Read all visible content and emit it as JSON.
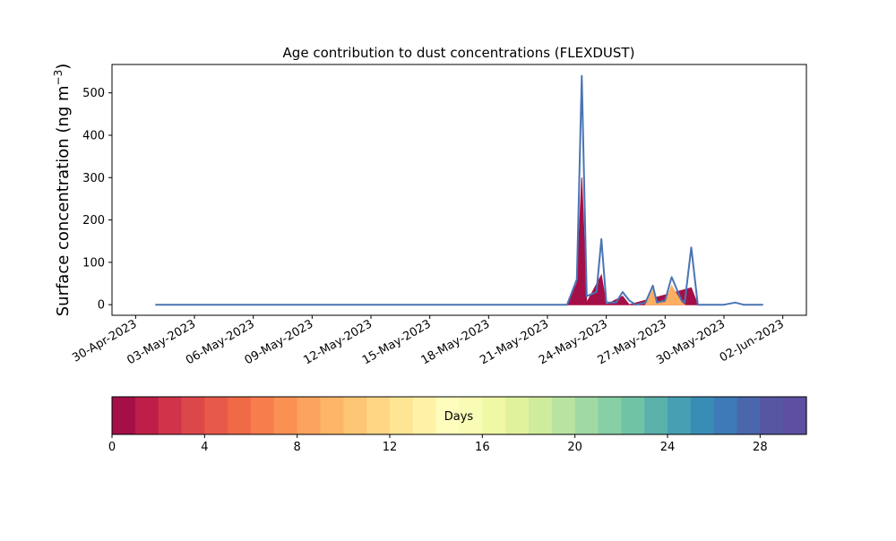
{
  "chart_data": {
    "type": "area",
    "title": "Age contribution to dust concentrations (FLEXDUST)",
    "ylabel": "Surface concentration (ng m",
    "ylabel_unit_exponent": "−3",
    "ylabel_close": ")",
    "xlabel": "",
    "x_range": [
      "2023-04-30",
      "2023-06-02"
    ],
    "ylim": [
      -25,
      567
    ],
    "x_ticks": [
      "30-Apr-2023",
      "03-May-2023",
      "06-May-2023",
      "09-May-2023",
      "12-May-2023",
      "15-May-2023",
      "18-May-2023",
      "21-May-2023",
      "24-May-2023",
      "27-May-2023",
      "30-May-2023",
      "02-Jun-2023"
    ],
    "y_ticks": [
      0,
      100,
      200,
      300,
      400,
      500
    ],
    "grid": false,
    "stacked": true,
    "total_series": {
      "name": "total",
      "color": "#4a74b5",
      "points": [
        [
          "2023-05-01",
          0
        ],
        [
          "2023-05-22",
          0
        ],
        [
          "2023-05-22 12:00",
          60
        ],
        [
          "2023-05-22 18:00",
          540
        ],
        [
          "2023-05-23 00:00",
          20
        ],
        [
          "2023-05-23 12:00",
          30
        ],
        [
          "2023-05-23 18:00",
          155
        ],
        [
          "2023-05-24 00:00",
          5
        ],
        [
          "2023-05-24 12:00",
          5
        ],
        [
          "2023-05-24 20:00",
          30
        ],
        [
          "2023-05-25 04:00",
          10
        ],
        [
          "2023-05-25 12:00",
          0
        ],
        [
          "2023-05-26 00:00",
          5
        ],
        [
          "2023-05-26 09:00",
          45
        ],
        [
          "2023-05-26 14:00",
          5
        ],
        [
          "2023-05-27 00:00",
          10
        ],
        [
          "2023-05-27 08:00",
          65
        ],
        [
          "2023-05-27 20:00",
          10
        ],
        [
          "2023-05-28 00:00",
          5
        ],
        [
          "2023-05-28 08:00",
          135
        ],
        [
          "2023-05-28 16:00",
          0
        ],
        [
          "2023-05-30 00:00",
          0
        ],
        [
          "2023-05-30 14:00",
          5
        ],
        [
          "2023-05-31 00:00",
          0
        ],
        [
          "2023-06-01",
          0
        ]
      ]
    },
    "age_bands": [
      {
        "name": "0-1 days",
        "color": "#a50f47",
        "points": [
          [
            "2023-05-22",
            0
          ],
          [
            "2023-05-22 12:00",
            50
          ],
          [
            "2023-05-22 18:00",
            300
          ],
          [
            "2023-05-23 00:00",
            5
          ],
          [
            "2023-05-23 18:00",
            70
          ],
          [
            "2023-05-24 00:00",
            0
          ],
          [
            "2023-05-24 20:00",
            20
          ],
          [
            "2023-05-25 04:00",
            0
          ],
          [
            "2023-05-28 08:00",
            40
          ],
          [
            "2023-05-28 16:00",
            0
          ]
        ]
      },
      {
        "name": "8-14 days",
        "color": "#fdae61",
        "points": [
          [
            "2023-05-26 00:00",
            0
          ],
          [
            "2023-05-26 09:00",
            35
          ],
          [
            "2023-05-26 14:00",
            5
          ],
          [
            "2023-05-27 00:00",
            5
          ],
          [
            "2023-05-27 08:00",
            45
          ],
          [
            "2023-05-27 20:00",
            5
          ],
          [
            "2023-05-28 00:00",
            0
          ]
        ]
      }
    ]
  },
  "colorbar": {
    "label": "Days",
    "vmin": 0,
    "vmax": 30,
    "ticks": [
      0,
      4,
      8,
      12,
      16,
      20,
      24,
      28
    ],
    "colors": [
      "#a50f47",
      "#bd1f48",
      "#cf344b",
      "#dc474a",
      "#e75a49",
      "#f06a47",
      "#f77d4d",
      "#fa9153",
      "#fca35d",
      "#fdb567",
      "#fdc674",
      "#fed684",
      "#fee594",
      "#fff2a6",
      "#fefdbd",
      "#f9fcb5",
      "#eff8a4",
      "#e1f29c",
      "#cfeb9c",
      "#b9e3a0",
      "#a0d9a3",
      "#87cfa4",
      "#71c3a5",
      "#5ab1aa",
      "#469fb2",
      "#388db7",
      "#3e7ab5",
      "#4a67ad",
      "#5656a3",
      "#5e4fa2"
    ]
  }
}
